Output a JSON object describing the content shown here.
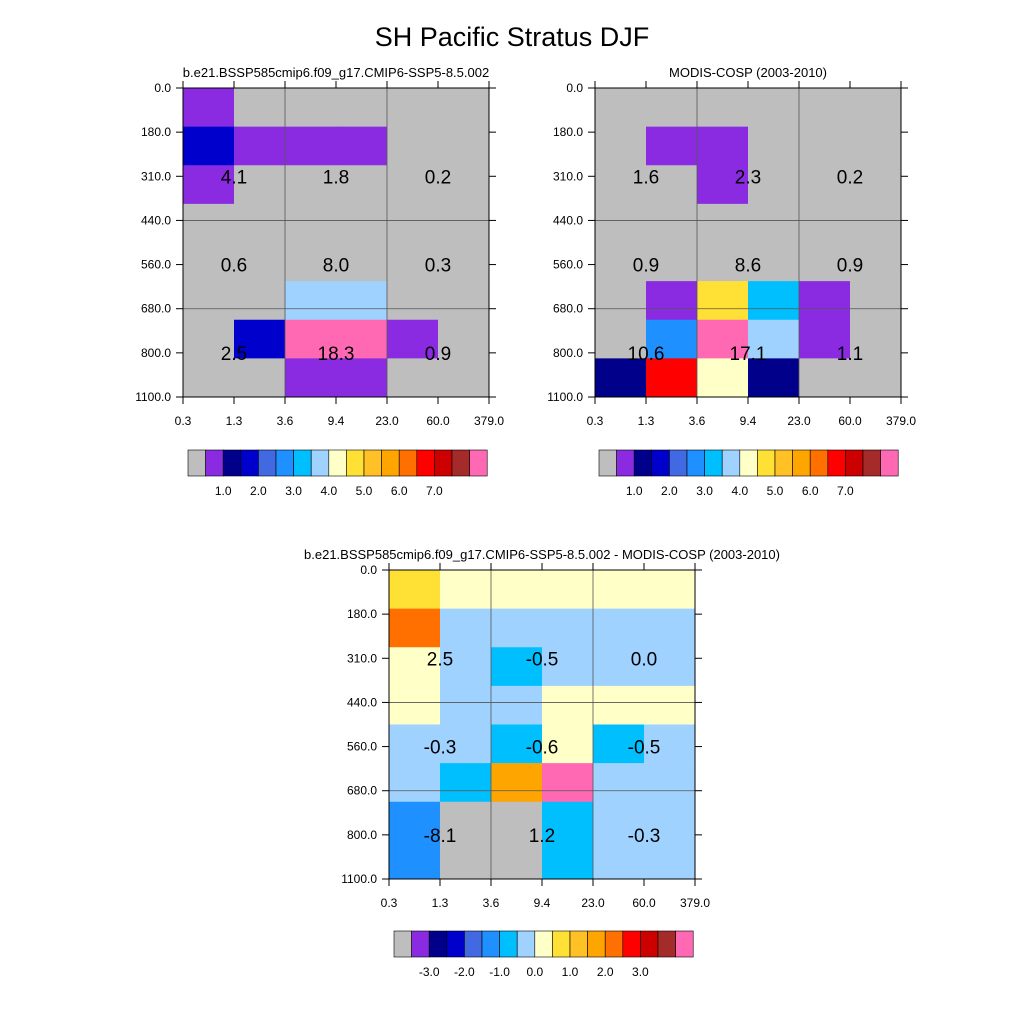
{
  "figure_title": "SH Pacific Stratus DJF",
  "chart_data": [
    {
      "type": "heatmap",
      "title": "b.e21.BSSP585cmip6.f09_g17.CMIP6-SSP5-8.5.002",
      "xlabel": "",
      "ylabel": "",
      "x_ticks": [
        "0.3",
        "1.3",
        "3.6",
        "9.4",
        "23.0",
        "60.0",
        "379.0"
      ],
      "y_ticks": [
        "0.0",
        "180.0",
        "310.0",
        "440.0",
        "560.0",
        "680.0",
        "800.0",
        "1100.0"
      ],
      "cells": [
        [
          1,
          0,
          0,
          0,
          0,
          0
        ],
        [
          3,
          1,
          1,
          1,
          0,
          0
        ],
        [
          1,
          0,
          0,
          0,
          0,
          0
        ],
        [
          0,
          0,
          0,
          0,
          0,
          0
        ],
        [
          0,
          0,
          0,
          0,
          0,
          0
        ],
        [
          0,
          0,
          7,
          7,
          0,
          0
        ],
        [
          0,
          3,
          16,
          16,
          1,
          0
        ],
        [
          0,
          0,
          1,
          1,
          0,
          0
        ]
      ],
      "annotations": [
        {
          "label": "4.1",
          "col": 1,
          "row": 2
        },
        {
          "label": "1.8",
          "col": 3,
          "row": 2
        },
        {
          "label": "0.2",
          "col": 5,
          "row": 2
        },
        {
          "label": "0.6",
          "col": 1,
          "row": 4
        },
        {
          "label": "8.0",
          "col": 3,
          "row": 4
        },
        {
          "label": "0.3",
          "col": 5,
          "row": 4
        },
        {
          "label": "2.5",
          "col": 1,
          "row": 6
        },
        {
          "label": "18.3",
          "col": 3,
          "row": 6
        },
        {
          "label": "0.9",
          "col": 5,
          "row": 6
        }
      ],
      "colorbar": {
        "labels": [
          "1.0",
          "2.0",
          "3.0",
          "4.0",
          "5.0",
          "6.0",
          "7.0"
        ],
        "first_label_box": 2
      }
    },
    {
      "type": "heatmap",
      "title": "MODIS-COSP (2003-2010)",
      "xlabel": "",
      "ylabel": "",
      "x_ticks": [
        "0.3",
        "1.3",
        "3.6",
        "9.4",
        "23.0",
        "60.0",
        "379.0"
      ],
      "y_ticks": [
        "0.0",
        "180.0",
        "310.0",
        "440.0",
        "560.0",
        "680.0",
        "800.0",
        "1100.0"
      ],
      "cells": [
        [
          0,
          0,
          0,
          0,
          0,
          0
        ],
        [
          0,
          1,
          1,
          0,
          0,
          0
        ],
        [
          0,
          0,
          1,
          0,
          0,
          0
        ],
        [
          0,
          0,
          0,
          0,
          0,
          0
        ],
        [
          0,
          0,
          0,
          0,
          0,
          0
        ],
        [
          0,
          1,
          9,
          6,
          1,
          0
        ],
        [
          0,
          5,
          16,
          7,
          1,
          0
        ],
        [
          2,
          13,
          8,
          2,
          0,
          0
        ]
      ],
      "annotations": [
        {
          "label": "1.6",
          "col": 1,
          "row": 2
        },
        {
          "label": "2.3",
          "col": 3,
          "row": 2
        },
        {
          "label": "0.2",
          "col": 5,
          "row": 2
        },
        {
          "label": "0.9",
          "col": 1,
          "row": 4
        },
        {
          "label": "8.6",
          "col": 3,
          "row": 4
        },
        {
          "label": "0.9",
          "col": 5,
          "row": 4
        },
        {
          "label": "10.6",
          "col": 1,
          "row": 6
        },
        {
          "label": "17.1",
          "col": 3,
          "row": 6
        },
        {
          "label": "1.1",
          "col": 5,
          "row": 6
        }
      ],
      "colorbar": {
        "labels": [
          "1.0",
          "2.0",
          "3.0",
          "4.0",
          "5.0",
          "6.0",
          "7.0"
        ],
        "first_label_box": 2
      }
    },
    {
      "type": "heatmap",
      "title": "b.e21.BSSP585cmip6.f09_g17.CMIP6-SSP5-8.5.002 - MODIS-COSP (2003-2010)",
      "xlabel": "",
      "ylabel": "",
      "x_ticks": [
        "0.3",
        "1.3",
        "3.6",
        "9.4",
        "23.0",
        "60.0",
        "379.0"
      ],
      "y_ticks": [
        "0.0",
        "180.0",
        "310.0",
        "440.0",
        "560.0",
        "680.0",
        "800.0",
        "1100.0"
      ],
      "cells": [
        [
          9,
          8,
          8,
          8,
          8,
          8
        ],
        [
          12,
          7,
          7,
          7,
          7,
          7
        ],
        [
          8,
          7,
          6,
          7,
          7,
          7
        ],
        [
          8,
          7,
          7,
          8,
          8,
          8
        ],
        [
          7,
          7,
          6,
          8,
          6,
          7
        ],
        [
          7,
          6,
          11,
          16,
          7,
          7
        ],
        [
          5,
          0,
          0,
          6,
          7,
          7
        ],
        [
          5,
          0,
          0,
          6,
          7,
          7
        ]
      ],
      "annotations": [
        {
          "label": "2.5",
          "col": 1,
          "row": 2
        },
        {
          "label": "-0.5",
          "col": 3,
          "row": 2
        },
        {
          "label": "0.0",
          "col": 5,
          "row": 2
        },
        {
          "label": "-0.3",
          "col": 1,
          "row": 4
        },
        {
          "label": "-0.6",
          "col": 3,
          "row": 4
        },
        {
          "label": "-0.5",
          "col": 5,
          "row": 4
        },
        {
          "label": "-8.1",
          "col": 1,
          "row": 6
        },
        {
          "label": "1.2",
          "col": 3,
          "row": 6
        },
        {
          "label": "-0.3",
          "col": 5,
          "row": 6
        }
      ],
      "colorbar": {
        "labels": [
          "-3.0",
          "-2.0",
          "-1.0",
          "0.0",
          "1.0",
          "2.0",
          "3.0"
        ],
        "first_label_box": 2
      }
    }
  ],
  "colors": {
    "palette": [
      "#bebebe",
      "#8a2be2",
      "#00008b",
      "#0000cd",
      "#4169e1",
      "#1e90ff",
      "#00bfff",
      "#a0d2ff",
      "#ffffc8",
      "#ffe135",
      "#ffc125",
      "#ffa500",
      "#ff7000",
      "#ff0000",
      "#cd0000",
      "#a52a2a",
      "#ff69b4"
    ],
    "grid": "#555555",
    "axis": "#000000"
  }
}
